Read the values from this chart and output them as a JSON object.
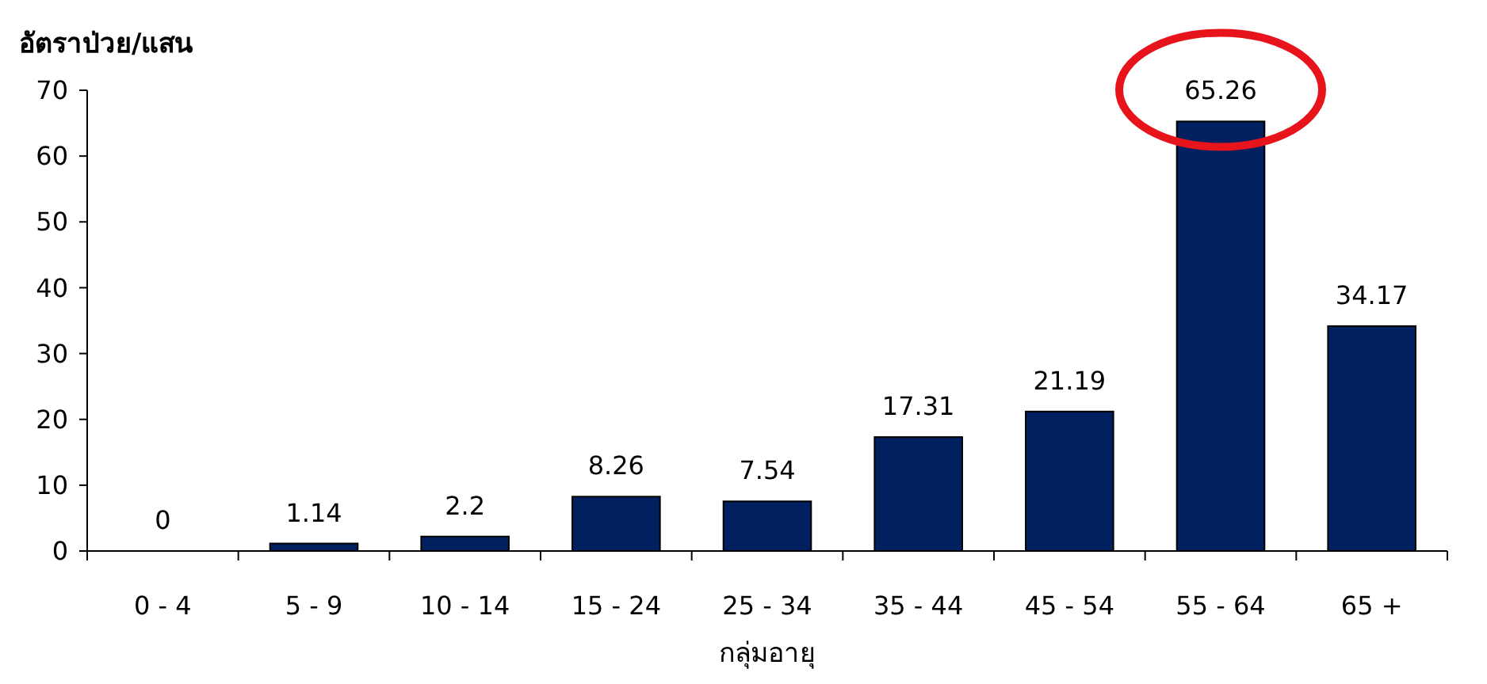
{
  "chart_data": {
    "type": "bar",
    "ylabel": "อัตราป่วย/แสน",
    "xlabel": "กลุ่มอายุ",
    "categories": [
      "0 - 4",
      "5 - 9",
      "10 - 14",
      "15 - 24",
      "25 - 34",
      "35 - 44",
      "45 - 54",
      "55 - 64",
      "65 +"
    ],
    "values": [
      0,
      1.14,
      2.2,
      8.26,
      7.54,
      17.31,
      21.19,
      65.26,
      34.17
    ],
    "color": "#002060",
    "ylim": [
      0,
      70
    ],
    "yticks": [
      0,
      10,
      20,
      30,
      40,
      50,
      60,
      70
    ],
    "data_labels": true
  }
}
